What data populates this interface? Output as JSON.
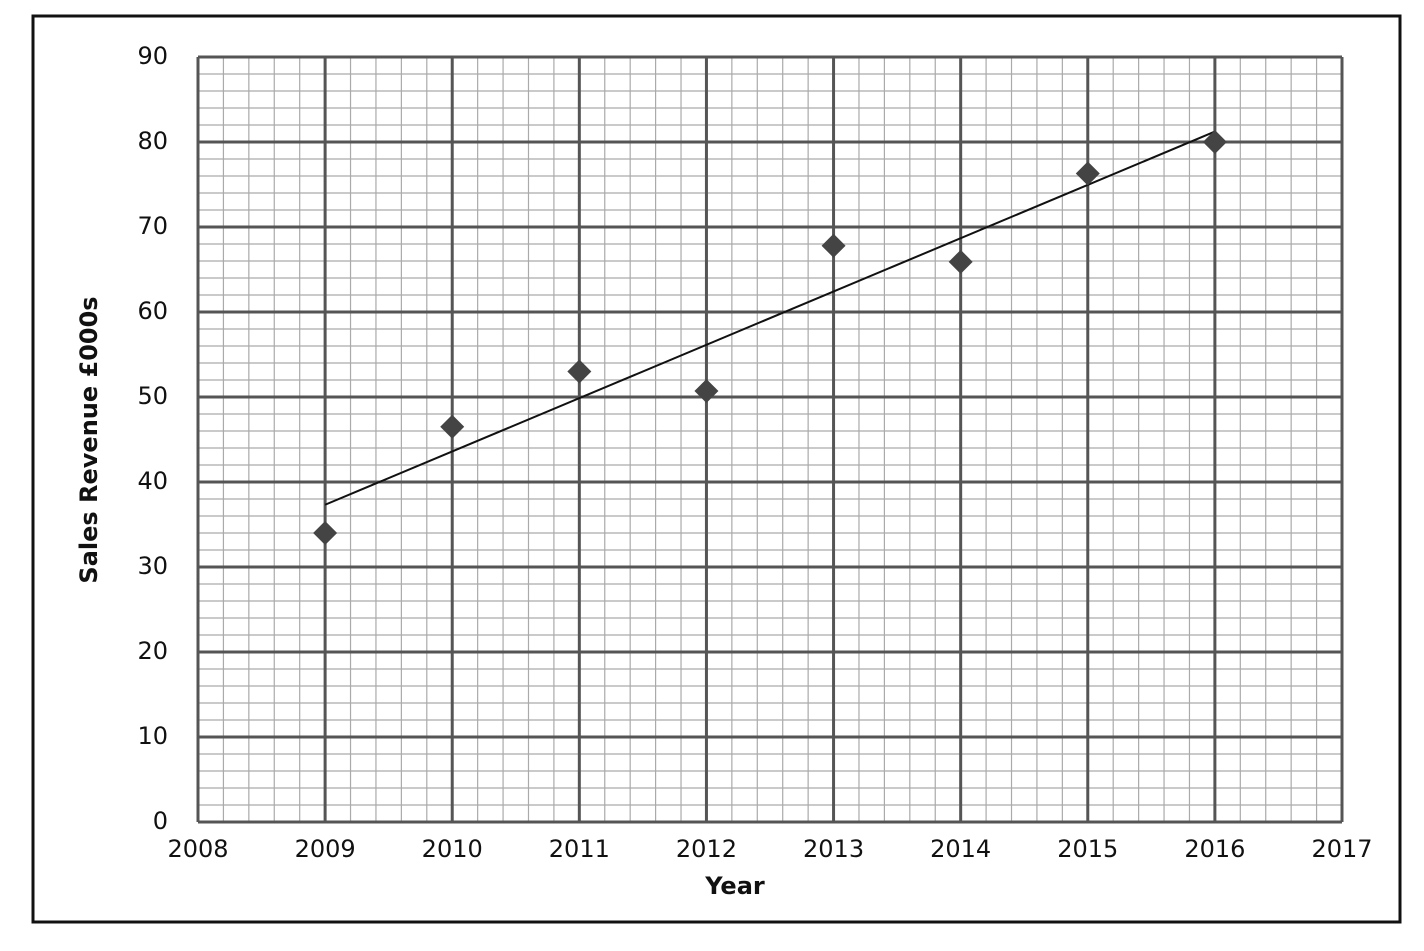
{
  "chart_data": {
    "type": "scatter",
    "x_label": "Year",
    "y_label": "Sales Revenue £000s",
    "x": [
      2009,
      2010,
      2011,
      2012,
      2013,
      2014,
      2015,
      2016
    ],
    "series": [
      {
        "color": "#444444",
        "values": [
          34,
          46.5,
          53,
          50.7,
          67.8,
          65.9,
          76.3,
          80
        ]
      }
    ],
    "xlim": [
      2008,
      2017
    ],
    "xticks": [
      2008,
      2009,
      2010,
      2011,
      2012,
      2013,
      2014,
      2015,
      2016,
      2017
    ],
    "ylim": [
      0,
      90
    ],
    "yticks": [
      0,
      10,
      20,
      30,
      40,
      50,
      60,
      70,
      80,
      90
    ],
    "grid": true,
    "minor_grid": true,
    "trendline": "linear"
  }
}
